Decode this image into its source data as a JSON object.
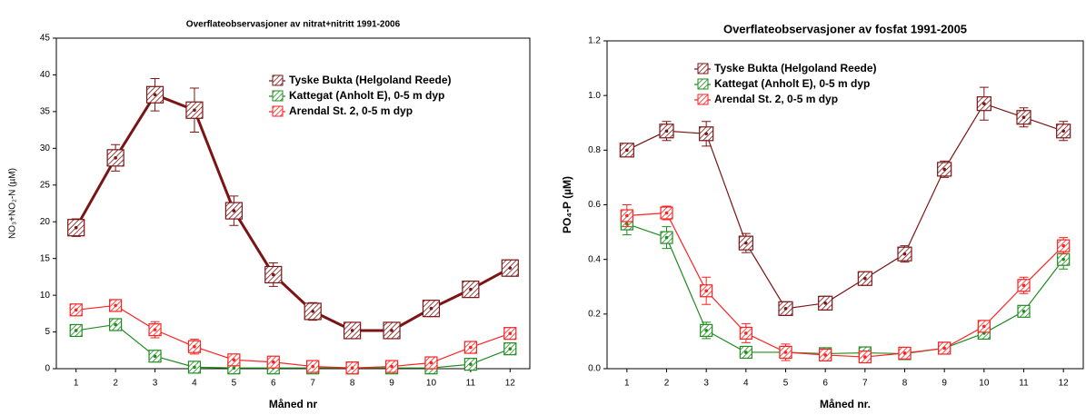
{
  "chart_data": [
    {
      "type": "line",
      "title": "Overflateobservasjoner av nitrat+nitritt 1991-2006",
      "x_label": "Måned nr",
      "y_label": "NO₃+NO₂-N (µM)",
      "categories": [
        "1",
        "2",
        "3",
        "4",
        "5",
        "6",
        "7",
        "8",
        "9",
        "10",
        "11",
        "12"
      ],
      "ylim": [
        0,
        45
      ],
      "yticks": [
        0,
        5,
        10,
        15,
        20,
        25,
        30,
        35,
        40,
        45
      ],
      "grid": false,
      "series": [
        {
          "name": "Tyske Bukta (Helgoland Reede)",
          "color": "#7b1414",
          "values": [
            19.2,
            28.7,
            37.3,
            35.2,
            21.5,
            12.8,
            7.8,
            5.2,
            5.2,
            8.2,
            10.8,
            13.7
          ],
          "errors": [
            1.2,
            1.8,
            2.2,
            3.0,
            2.0,
            1.6,
            1.2,
            0.8,
            0.8,
            1.1,
            1.1,
            1.1
          ]
        },
        {
          "name": "Kattegat (Anholt E), 0-5 m dyp",
          "color": "#1e8c1e",
          "values": [
            5.2,
            6.0,
            1.7,
            0.2,
            0.1,
            0.1,
            0.1,
            0.1,
            0.1,
            0.1,
            0.6,
            2.7
          ],
          "errors": [
            0.5,
            0.6,
            0.6,
            0.2,
            0.1,
            0.1,
            0.1,
            0.1,
            0.1,
            0.1,
            0.2,
            0.4
          ]
        },
        {
          "name": "Arendal St. 2, 0-5 m dyp",
          "color": "#ff2020",
          "values": [
            8.0,
            8.6,
            5.3,
            3.0,
            1.2,
            0.9,
            0.3,
            0.1,
            0.3,
            0.8,
            2.9,
            4.8
          ],
          "errors": [
            0.5,
            0.7,
            1.1,
            1.0,
            0.3,
            0.4,
            0.2,
            0.1,
            0.1,
            0.2,
            0.3,
            0.4
          ]
        }
      ]
    },
    {
      "type": "line",
      "title": "Overflateobservasjoner av fosfat 1991-2005",
      "x_label": "Måned nr.",
      "y_label": "PO₄-P (µM)",
      "categories": [
        "1",
        "2",
        "3",
        "4",
        "5",
        "6",
        "7",
        "8",
        "9",
        "10",
        "11",
        "12"
      ],
      "ylim": [
        0,
        1.2
      ],
      "yticks": [
        {
          "value": 0,
          "label": "0.0"
        },
        0.2,
        0.4,
        0.6,
        0.8,
        {
          "value": 1,
          "label": "1.0"
        },
        1.2
      ],
      "grid": false,
      "series": [
        {
          "name": "Tyske Bukta (Helgoland Reede)",
          "color": "#7b1414",
          "values": [
            0.8,
            0.87,
            0.86,
            0.46,
            0.22,
            0.24,
            0.33,
            0.42,
            0.73,
            0.97,
            0.92,
            0.87
          ],
          "errors": [
            0.02,
            0.035,
            0.045,
            0.035,
            0.025,
            0.025,
            0.025,
            0.03,
            0.03,
            0.06,
            0.035,
            0.035
          ]
        },
        {
          "name": "Kattegat (Anholt E), 0-5 m dyp",
          "color": "#1e8c1e",
          "values": [
            0.53,
            0.48,
            0.14,
            0.06,
            0.06,
            0.055,
            0.058,
            0.055,
            0.075,
            0.13,
            0.21,
            0.4
          ],
          "errors": [
            0.04,
            0.04,
            0.03,
            0.01,
            0.01,
            0.01,
            0.01,
            0.01,
            0.01,
            0.02,
            0.02,
            0.035
          ]
        },
        {
          "name": "Arendal St. 2, 0-5 m dyp",
          "color": "#ff2020",
          "values": [
            0.56,
            0.57,
            0.285,
            0.13,
            0.06,
            0.05,
            0.043,
            0.057,
            0.075,
            0.155,
            0.305,
            0.45
          ],
          "errors": [
            0.04,
            0.025,
            0.05,
            0.035,
            0.03,
            0.02,
            0.01,
            0.01,
            0.01,
            0.02,
            0.03,
            0.03
          ]
        }
      ]
    }
  ]
}
